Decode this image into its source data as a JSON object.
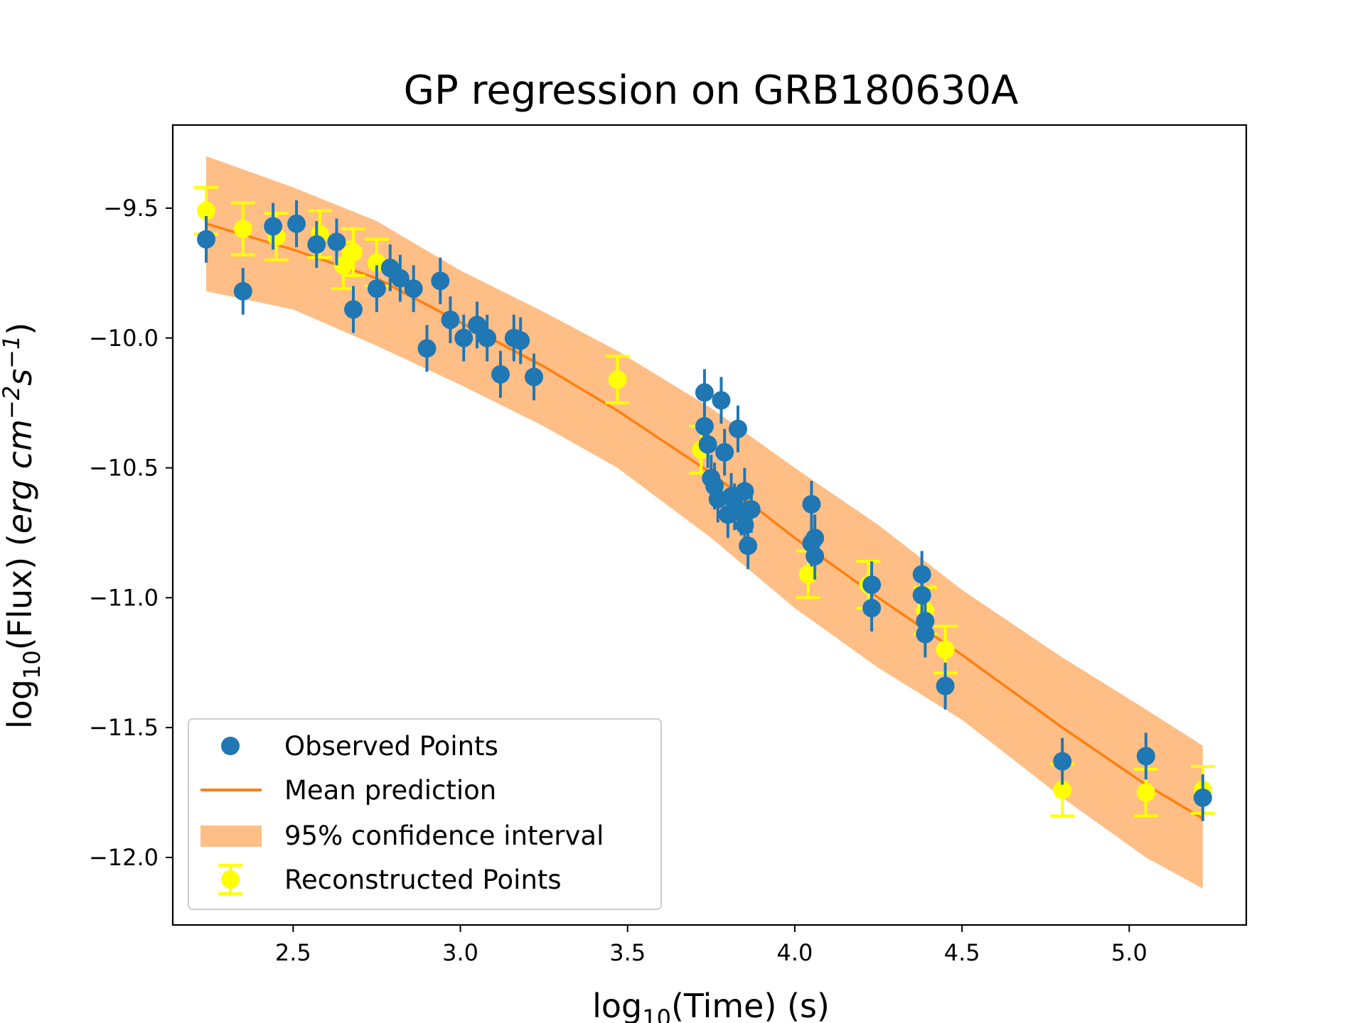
{
  "chart_data": {
    "type": "scatter",
    "title": "GP regression on GRB180630A",
    "xlabel": {
      "prefix": "log",
      "sub": "10",
      "rest": "(Time) (s)"
    },
    "ylabel": {
      "prefix": "log",
      "sub": "10",
      "rest": "(Flux) (",
      "units": "erg cm",
      "exp1": "−2",
      "mid": "s",
      "exp2": "−1",
      "close": ")"
    },
    "xlim": [
      2.14,
      5.35
    ],
    "ylim": [
      -12.26,
      -9.18
    ],
    "xticks": [
      2.5,
      3.0,
      3.5,
      4.0,
      4.5,
      5.0
    ],
    "xtick_labels": [
      "2.5",
      "3.0",
      "3.5",
      "4.0",
      "4.5",
      "5.0"
    ],
    "yticks": [
      -9.5,
      -10.0,
      -10.5,
      -11.0,
      -11.5,
      -12.0
    ],
    "ytick_labels": [
      "−9.5",
      "−10.0",
      "−10.5",
      "−11.0",
      "−11.5",
      "−12.0"
    ],
    "colors": {
      "observed": "#1f77b4",
      "mean": "#ff7f0e",
      "band": "#ffbe86",
      "reconstructed": "#ffff00"
    },
    "legend": {
      "position": "lower-left",
      "entries": [
        "Observed Points",
        "Mean prediction",
        "95% confidence interval",
        "Reconstructed Points"
      ]
    },
    "mean_prediction": {
      "x": [
        2.24,
        2.5,
        2.75,
        3.0,
        3.25,
        3.47,
        3.75,
        4.0,
        4.25,
        4.5,
        4.8,
        5.05,
        5.22
      ],
      "y": [
        -9.56,
        -9.66,
        -9.77,
        -9.94,
        -10.11,
        -10.28,
        -10.52,
        -10.77,
        -11.0,
        -11.22,
        -11.5,
        -11.72,
        -11.85
      ]
    },
    "confidence_upper": [
      -9.3,
      -9.42,
      -9.55,
      -9.74,
      -9.9,
      -10.05,
      -10.27,
      -10.5,
      -10.72,
      -10.97,
      -11.23,
      -11.43,
      -11.57
    ],
    "confidence_lower": [
      -9.82,
      -9.89,
      -10.03,
      -10.18,
      -10.34,
      -10.5,
      -10.77,
      -11.04,
      -11.27,
      -11.47,
      -11.77,
      -12.0,
      -12.12
    ],
    "observed_points": {
      "x": [
        2.24,
        2.35,
        2.44,
        2.51,
        2.57,
        2.63,
        2.68,
        2.75,
        2.79,
        2.82,
        2.86,
        2.9,
        2.94,
        2.97,
        3.01,
        3.05,
        3.08,
        3.12,
        3.16,
        3.18,
        3.22,
        3.73,
        3.73,
        3.74,
        3.75,
        3.76,
        3.77,
        3.78,
        3.79,
        3.8,
        3.81,
        3.82,
        3.83,
        3.84,
        3.85,
        3.85,
        3.86,
        3.87,
        4.05,
        4.05,
        4.06,
        4.06,
        4.23,
        4.23,
        4.38,
        4.38,
        4.39,
        4.39,
        4.45,
        4.8,
        5.05,
        5.22
      ],
      "y": [
        -9.62,
        -9.82,
        -9.57,
        -9.56,
        -9.64,
        -9.63,
        -9.89,
        -9.81,
        -9.73,
        -9.77,
        -9.81,
        -10.04,
        -9.78,
        -9.93,
        -10.0,
        -9.95,
        -10.0,
        -10.14,
        -10.0,
        -10.01,
        -10.15,
        -10.21,
        -10.34,
        -10.41,
        -10.54,
        -10.57,
        -10.62,
        -10.24,
        -10.44,
        -10.68,
        -10.61,
        -10.65,
        -10.35,
        -10.67,
        -10.59,
        -10.72,
        -10.8,
        -10.66,
        -10.64,
        -10.79,
        -10.77,
        -10.84,
        -10.95,
        -11.04,
        -10.91,
        -10.99,
        -11.09,
        -11.14,
        -11.34,
        -11.63,
        -11.61,
        -11.77
      ],
      "yerr": [
        0.09,
        0.09,
        0.09,
        0.09,
        0.09,
        0.09,
        0.09,
        0.09,
        0.09,
        0.09,
        0.09,
        0.09,
        0.09,
        0.09,
        0.09,
        0.09,
        0.09,
        0.09,
        0.09,
        0.09,
        0.09,
        0.09,
        0.09,
        0.09,
        0.09,
        0.09,
        0.09,
        0.09,
        0.09,
        0.09,
        0.09,
        0.09,
        0.09,
        0.09,
        0.09,
        0.09,
        0.09,
        0.09,
        0.09,
        0.09,
        0.09,
        0.09,
        0.09,
        0.09,
        0.09,
        0.09,
        0.09,
        0.09,
        0.09,
        0.09,
        0.09,
        0.09
      ]
    },
    "reconstructed_points": {
      "x": [
        2.24,
        2.35,
        2.45,
        2.58,
        2.65,
        2.68,
        2.75,
        3.47,
        3.72,
        4.04,
        4.22,
        4.39,
        4.45,
        4.8,
        5.05,
        5.22
      ],
      "y": [
        -9.51,
        -9.58,
        -9.61,
        -9.6,
        -9.72,
        -9.67,
        -9.71,
        -10.16,
        -10.43,
        -10.91,
        -10.95,
        -11.05,
        -11.2,
        -11.74,
        -11.75,
        -11.74
      ],
      "yerr": [
        0.09,
        0.1,
        0.09,
        0.09,
        0.09,
        0.09,
        0.09,
        0.09,
        0.09,
        0.09,
        0.09,
        0.09,
        0.09,
        0.1,
        0.09,
        0.09
      ]
    }
  }
}
